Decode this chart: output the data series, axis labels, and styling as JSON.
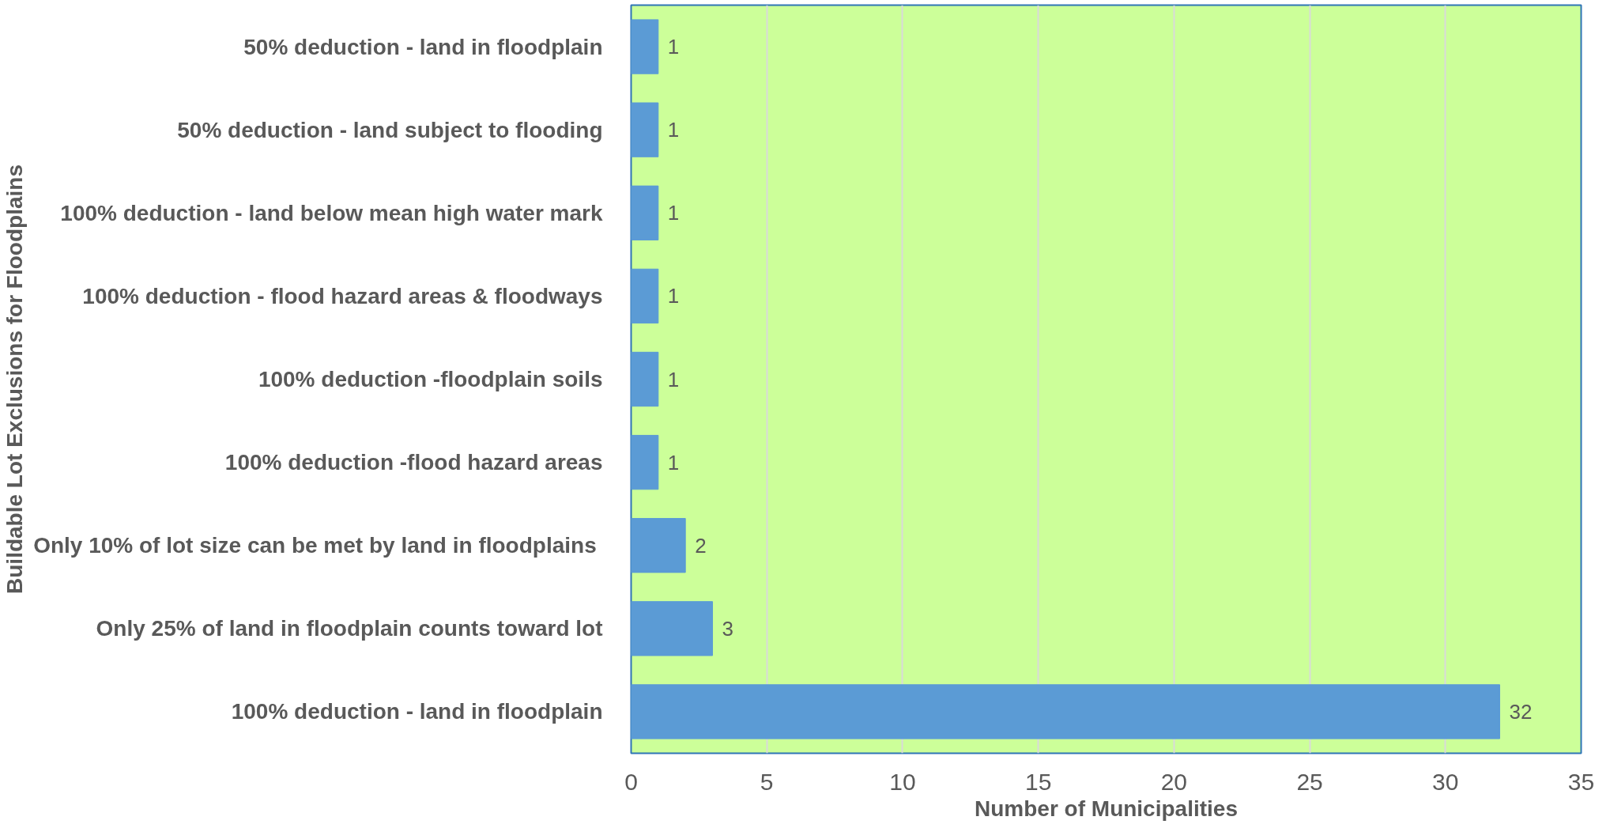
{
  "chart_data": {
    "type": "bar",
    "orientation": "horizontal",
    "xlabel": "Number of Municipalities",
    "ylabel": "Buildable Lot Exclusions for Floodplains",
    "categories": [
      "50% deduction - land in floodplain",
      "50% deduction - land subject to flooding",
      "100% deduction - land below mean high water mark",
      "100% deduction - flood hazard areas & floodways",
      "100% deduction -floodplain soils",
      "100% deduction -flood hazard areas",
      "Only 10% of lot size can be met by land in  floodplains",
      "Only 25% of land in floodplain counts toward lot",
      "100% deduction - land in floodplain"
    ],
    "values": [
      1,
      1,
      1,
      1,
      1,
      1,
      2,
      3,
      32
    ],
    "color": "#5b9bd5",
    "xlim": [
      0,
      35
    ],
    "xticks": [
      0,
      5,
      10,
      15,
      20,
      25,
      30,
      35
    ],
    "grid": "x",
    "data_labels": true
  }
}
